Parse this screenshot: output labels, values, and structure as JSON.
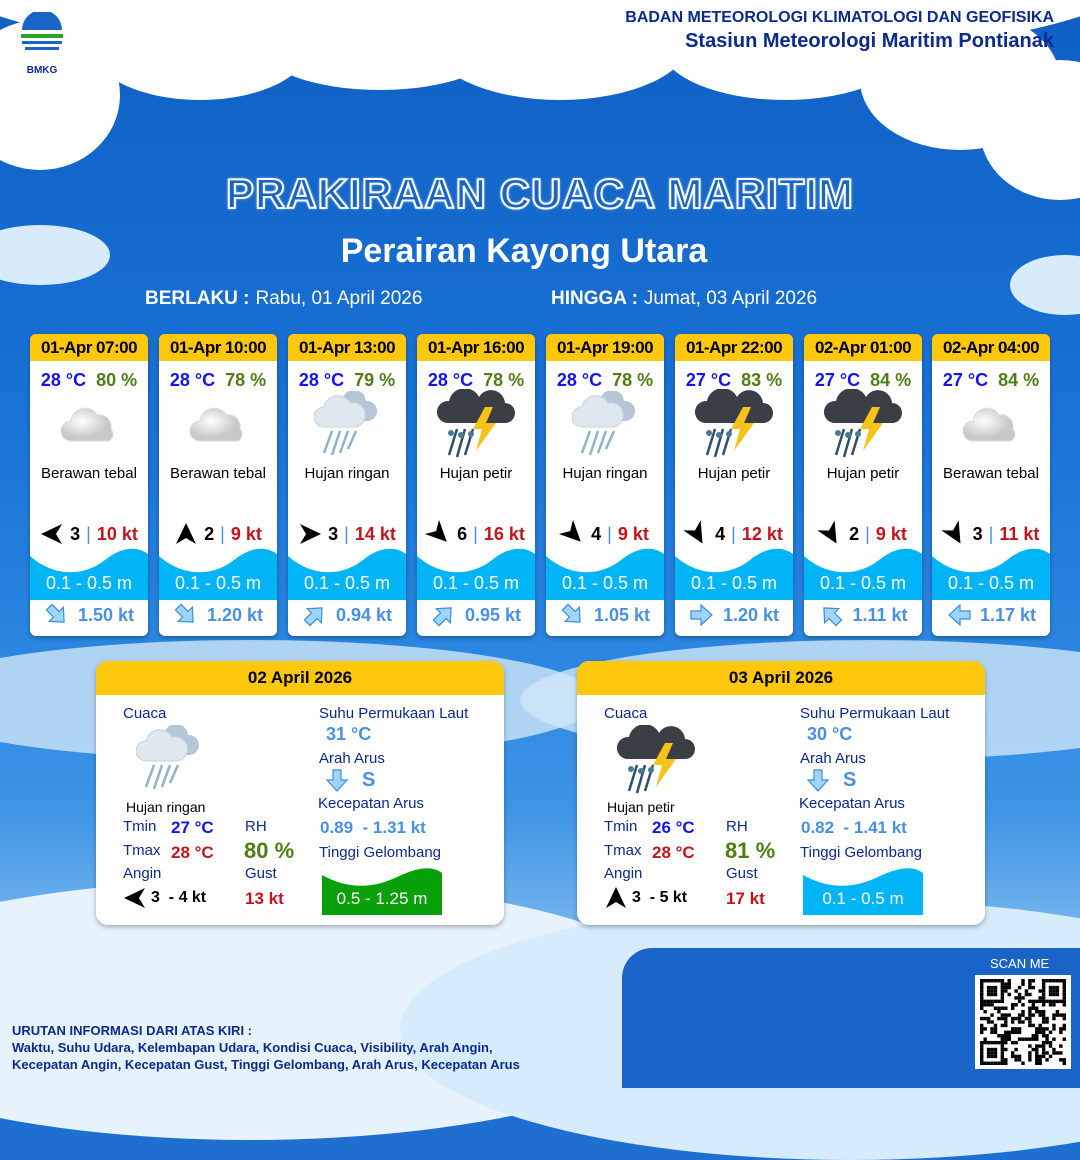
{
  "header": {
    "org": "BADAN METEOROLOGI KLIMATOLOGI DAN GEOFISIKA",
    "station": "Stasiun Meteorologi Maritim Pontianak",
    "logo_text": "BMKG"
  },
  "title": "PRAKIRAAN CUACA MARITIM",
  "subtitle": "Perairan Kayong Utara",
  "validity": {
    "from_label": "BERLAKU :",
    "from": "Rabu, 01 April 2026",
    "to_label": "HINGGA :",
    "to": "Jumat, 03 April 2026"
  },
  "forecasts": [
    {
      "time": "01-Apr 07:00",
      "temp": "28 °C",
      "rh": "80 %",
      "icon": "cloudy",
      "condition": "Berawan tebal",
      "wind_dir": "E",
      "wind_speed": "3",
      "gust": "10 kt",
      "wave": "0.1 - 0.5 m",
      "current_dir": "NW",
      "current_speed": "1.50 kt"
    },
    {
      "time": "01-Apr 10:00",
      "temp": "28 °C",
      "rh": "78 %",
      "icon": "cloudy",
      "condition": "Berawan tebal",
      "wind_dir": "N",
      "wind_speed": "2",
      "gust": "9 kt",
      "wave": "0.1 - 0.5 m",
      "current_dir": "NW",
      "current_speed": "1.20 kt"
    },
    {
      "time": "01-Apr 13:00",
      "temp": "28 °C",
      "rh": "79 %",
      "icon": "light-rain",
      "condition": "Hujan ringan",
      "wind_dir": "W",
      "wind_speed": "3",
      "gust": "14 kt",
      "wave": "0.1 - 0.5 m",
      "current_dir": "NE",
      "current_speed": "0.94 kt"
    },
    {
      "time": "01-Apr 16:00",
      "temp": "28 °C",
      "rh": "78 %",
      "icon": "thunderstorm",
      "condition": "Hujan petir",
      "wind_dir": "SE",
      "wind_speed": "6",
      "gust": "16 kt",
      "wave": "0.1 - 0.5 m",
      "current_dir": "NE",
      "current_speed": "0.95 kt"
    },
    {
      "time": "01-Apr 19:00",
      "temp": "28 °C",
      "rh": "78 %",
      "icon": "light-rain",
      "condition": "Hujan ringan",
      "wind_dir": "SE",
      "wind_speed": "4",
      "gust": "9 kt",
      "wave": "0.1 - 0.5 m",
      "current_dir": "NW",
      "current_speed": "1.05 kt"
    },
    {
      "time": "01-Apr 22:00",
      "temp": "27 °C",
      "rh": "83 %",
      "icon": "thunderstorm",
      "condition": "Hujan petir",
      "wind_dir": "SSE",
      "wind_speed": "4",
      "gust": "12 kt",
      "wave": "0.1 - 0.5 m",
      "current_dir": "W",
      "current_speed": "1.20 kt"
    },
    {
      "time": "02-Apr 01:00",
      "temp": "27 °C",
      "rh": "84 %",
      "icon": "thunderstorm",
      "condition": "Hujan petir",
      "wind_dir": "SSE",
      "wind_speed": "2",
      "gust": "9 kt",
      "wave": "0.1 - 0.5 m",
      "current_dir": "SE",
      "current_speed": "1.11 kt"
    },
    {
      "time": "02-Apr 04:00",
      "temp": "27 °C",
      "rh": "84 %",
      "icon": "cloudy",
      "condition": "Berawan tebal",
      "wind_dir": "SSE",
      "wind_speed": "3",
      "gust": "11 kt",
      "wave": "0.1 - 0.5 m",
      "current_dir": "E",
      "current_speed": "1.17 kt"
    }
  ],
  "summaries": [
    {
      "date": "02 April 2026",
      "icon": "light-rain",
      "condition": "Hujan ringan",
      "tmin": "27 °C",
      "tmax": "28 °C",
      "rh": "80 %",
      "wind_dir": "E",
      "wind": "3  - 4 kt",
      "gust": "13 kt",
      "sst": "31 °C",
      "current_dir": "S",
      "current_speed": "0.89  - 1.31 kt",
      "wave": "0.5 - 1.25 m",
      "wave_color": "#0aa00a"
    },
    {
      "date": "03 April 2026",
      "icon": "thunderstorm",
      "condition": "Hujan petir",
      "tmin": "26 °C",
      "tmax": "28 °C",
      "rh": "81 %",
      "wind_dir": "N",
      "wind": "3  - 5 kt",
      "gust": "17 kt",
      "sst": "30 °C",
      "current_dir": "S",
      "current_speed": "0.82  - 1.41 kt",
      "wave": "0.1 - 0.5 m",
      "wave_color": "#00b4f5"
    }
  ],
  "labels": {
    "cuaca": "Cuaca",
    "tmin": "Tmin",
    "tmax": "Tmax",
    "rh": "RH",
    "angin": "Angin",
    "gust": "Gust",
    "sst": "Suhu Permukaan Laut",
    "arah_arus": "Arah Arus",
    "kec_arus": "Kecepatan Arus",
    "tinggi": "Tinggi Gelombang"
  },
  "footer": {
    "line1": "URUTAN INFORMASI DARI ATAS KIRI :",
    "line2": "Waktu, Suhu Udara, Kelembapan Udara, Kondisi Cuaca, Visibility, Arah Angin,",
    "line3": "Kecepatan Angin, Kecepatan Gust, Tinggi Gelombang, Arah Arus, Kecepatan Arus"
  },
  "scan_label": "SCAN ME",
  "colors": {
    "header_yellow": "#fdc70c",
    "wave_blue": "#00b4f5",
    "temp": "#1414f0",
    "rh": "#4e7e14",
    "gust": "#c4141b"
  }
}
